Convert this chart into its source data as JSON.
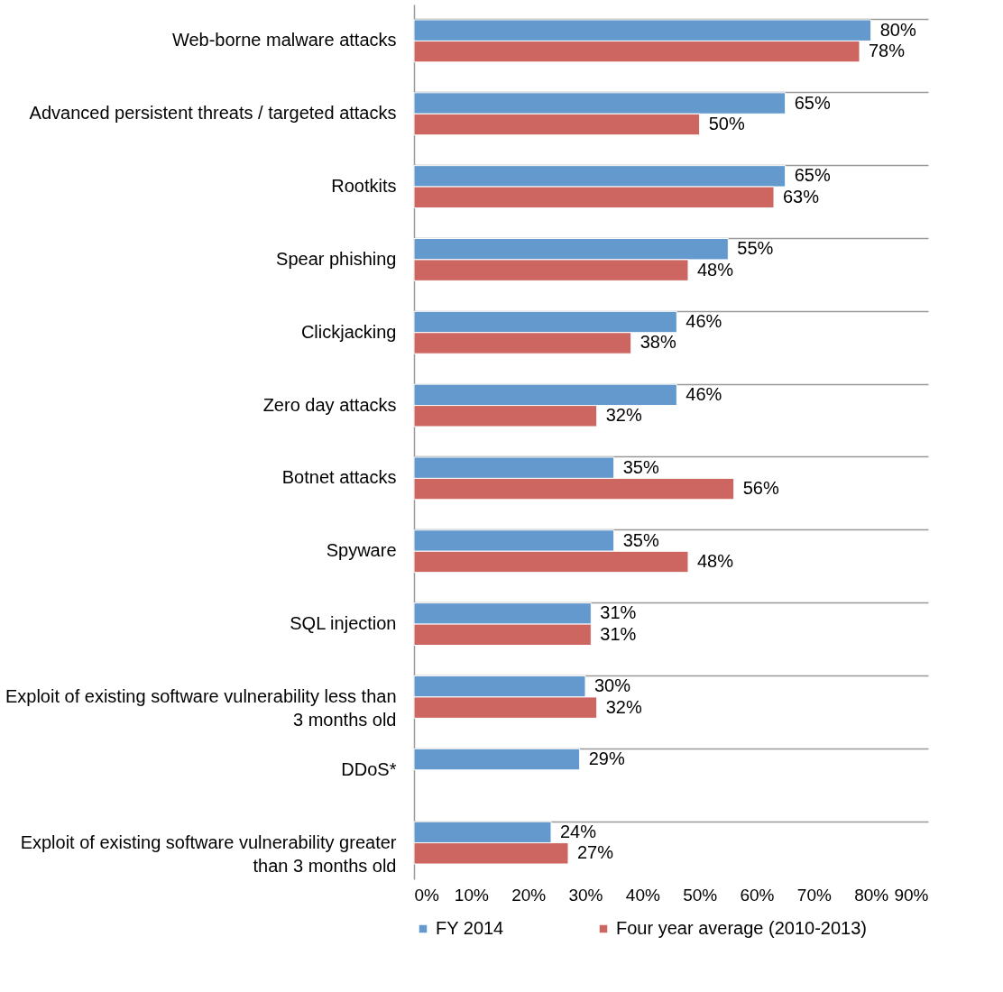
{
  "chart_data": {
    "type": "bar",
    "orientation": "horizontal",
    "categories": [
      "Web-borne malware attacks",
      "Advanced persistent threats / targeted attacks",
      "Rootkits",
      "Spear phishing",
      "Clickjacking",
      "Zero day attacks",
      "Botnet attacks",
      "Spyware",
      "SQL injection",
      "Exploit of existing software vulnerability less than 3 months old",
      "DDoS*",
      "Exploit of existing software vulnerability greater than 3 months old"
    ],
    "series": [
      {
        "name": "FY 2014",
        "color": "#6399cd",
        "values": [
          80,
          65,
          65,
          55,
          46,
          46,
          35,
          35,
          31,
          30,
          29,
          24
        ],
        "value_labels": [
          "80%",
          "65%",
          "65%",
          "55%",
          "46%",
          "46%",
          "35%",
          "35%",
          "31%",
          "30%",
          "29%",
          "24%"
        ]
      },
      {
        "name": "Four year average (2010-2013)",
        "color": "#cd6660",
        "values": [
          78,
          50,
          63,
          48,
          38,
          32,
          56,
          48,
          31,
          32,
          null,
          27
        ],
        "value_labels": [
          "78%",
          "50%",
          "63%",
          "48%",
          "38%",
          "32%",
          "56%",
          "48%",
          "31%",
          "32%",
          null,
          "27%"
        ]
      }
    ],
    "xlim": [
      0,
      90
    ],
    "xticks": [
      {
        "value": 0,
        "label": "0%"
      },
      {
        "value": 10,
        "label": "10%"
      },
      {
        "value": 20,
        "label": "20%"
      },
      {
        "value": 30,
        "label": "30%"
      },
      {
        "value": 40,
        "label": "40%"
      },
      {
        "value": 50,
        "label": "50%"
      },
      {
        "value": 60,
        "label": "60%"
      },
      {
        "value": 70,
        "label": "70%"
      },
      {
        "value": 80,
        "label": "80%"
      },
      {
        "value": 90,
        "label": "90%"
      }
    ],
    "grid": "y",
    "legend": "bottom"
  }
}
